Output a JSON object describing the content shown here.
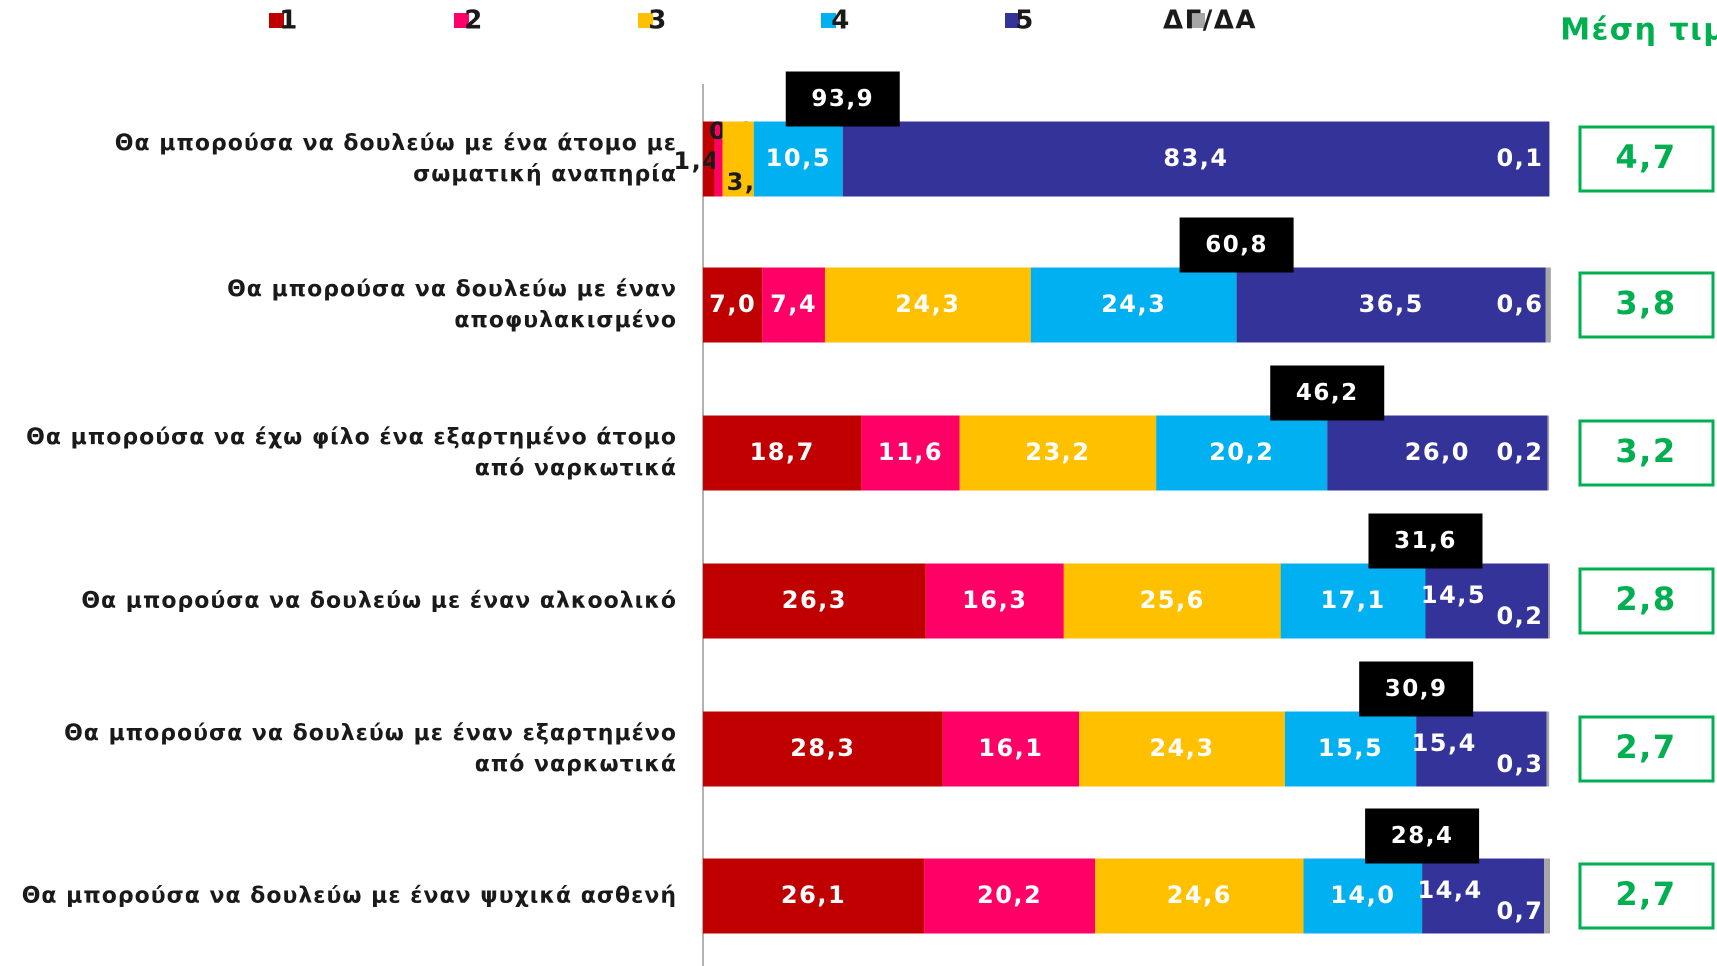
{
  "chart_data": {
    "type": "stacked_bar_horizontal",
    "categories": [
      "Θα μπορούσα να δουλεύω με ένα άτομο με σωματική αναπηρία",
      "Θα μπορούσα να δουλεύω με έναν αποφυλακισμένο",
      "Θα μπορούσα να έχω φίλο ένα εξαρτημένο άτομο από ναρκωτικά",
      "Θα μπορούσα να δουλεύω με έναν αλκοολικό",
      "Θα μπορούσα να δουλεύω με έναν εξαρτημένο από ναρκωτικά",
      "Θα μπορούσα να δουλεύω με έναν ψυχικά ασθενή"
    ],
    "xlim": [
      0,
      100
    ],
    "legend": "top",
    "series": [
      {
        "name": "1",
        "color": "#c00000",
        "values": [
          1.4,
          7,
          18.7,
          26.3,
          28.3,
          26.1
        ],
        "value_labels": [
          "1,4",
          "7,0",
          "18,7",
          "26,3",
          "28,3",
          "26,1"
        ]
      },
      {
        "name": "2",
        "color": "#ff0066",
        "values": [
          0.9,
          7.4,
          11.6,
          16.3,
          16.1,
          20.2
        ],
        "value_labels": [
          "0,9",
          "7,4",
          "11,6",
          "16,3",
          "16,1",
          "20,2"
        ]
      },
      {
        "name": "3",
        "color": "#ffc000",
        "values": [
          3.7,
          24.3,
          23.2,
          25.6,
          24.3,
          24.6
        ],
        "value_labels": [
          "3,7",
          "24,3",
          "23,2",
          "25,6",
          "24,3",
          "24,6"
        ]
      },
      {
        "name": "4",
        "color": "#00b0f0",
        "values": [
          10.5,
          24.3,
          20.2,
          17.1,
          15.5,
          14
        ],
        "value_labels": [
          "10,5",
          "24,3",
          "20,2",
          "17,1",
          "15,5",
          "14,0"
        ]
      },
      {
        "name": "5",
        "color": "#333399",
        "values": [
          83.4,
          36.5,
          26,
          14.5,
          15.4,
          14.4
        ],
        "value_labels": [
          "83,4",
          "36,5",
          "26,0",
          "14,5",
          "15,4",
          "14,4"
        ]
      },
      {
        "name": "ΔΓ/ΔΑ",
        "color": "#a6a6a6",
        "values": [
          0.1,
          0.6,
          0.2,
          0.2,
          0.3,
          0.7
        ],
        "value_labels": [
          "0,1",
          "0,6",
          "0,2",
          "0,2",
          "0,3",
          "0,7"
        ]
      }
    ],
    "top_box": {
      "values": [
        93.9,
        60.8,
        46.2,
        31.6,
        30.9,
        28.4
      ],
      "value_labels": [
        "93,9",
        "60,8",
        "46,2",
        "31,6",
        "30,9",
        "28,4"
      ]
    },
    "mean": {
      "title": "Μέση τιμή",
      "color": "#00b050",
      "values": [
        4.7,
        3.8,
        3.2,
        2.8,
        2.7,
        2.7
      ],
      "value_labels": [
        "4,7",
        "3,8",
        "3,2",
        "2,8",
        "2,7",
        "2,7"
      ]
    }
  }
}
